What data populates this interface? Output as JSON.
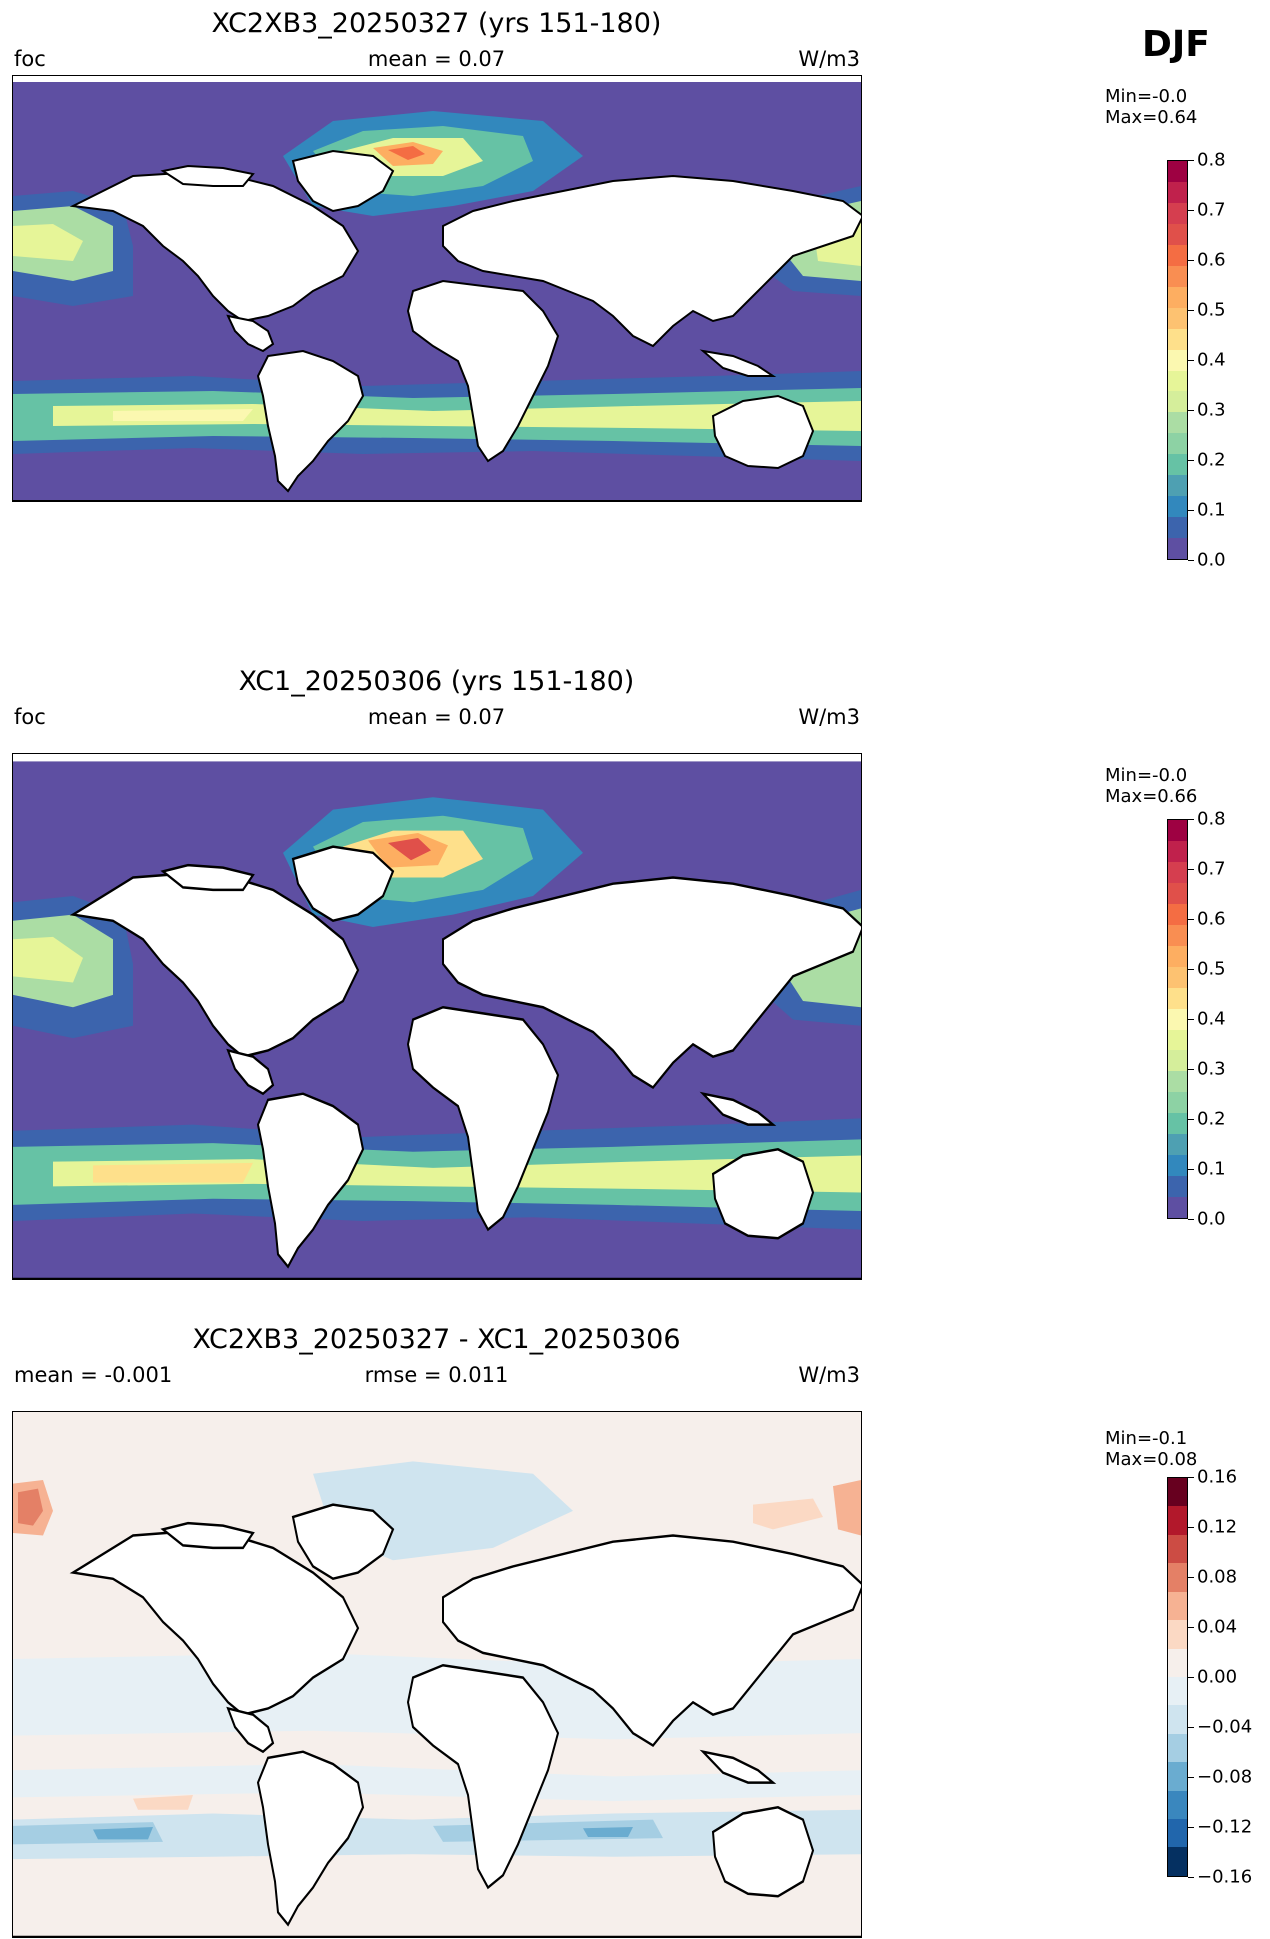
{
  "season_label": "DJF",
  "panels": [
    {
      "title": "XC2XB3_20250327 (yrs 151-180)",
      "left_label": "foc",
      "center_label": "mean = 0.07",
      "right_label": "W/m3",
      "min_label": "Min=-0.0",
      "max_label": "Max=0.64",
      "colorbar": {
        "ticks": [
          "0.0",
          "0.1",
          "0.2",
          "0.3",
          "0.4",
          "0.5",
          "0.6",
          "0.7",
          "0.8"
        ],
        "colors": [
          "#5e4fa2",
          "#3c64ad",
          "#3288bd",
          "#4ea0b2",
          "#66c2a5",
          "#8dd2a4",
          "#abdda4",
          "#d5ee9b",
          "#e6f598",
          "#fbf8b0",
          "#fee08b",
          "#fdc271",
          "#fdae61",
          "#f98e52",
          "#f46d43",
          "#e0504a",
          "#d53e4f",
          "#c0214c",
          "#9e0142"
        ]
      }
    },
    {
      "title": "XC1_20250306 (yrs 151-180)",
      "left_label": "foc",
      "center_label": "mean = 0.07",
      "right_label": "W/m3",
      "min_label": "Min=-0.0",
      "max_label": "Max=0.66",
      "colorbar": {
        "ticks": [
          "0.0",
          "0.1",
          "0.2",
          "0.3",
          "0.4",
          "0.5",
          "0.6",
          "0.7",
          "0.8"
        ],
        "colors": [
          "#5e4fa2",
          "#3c64ad",
          "#3288bd",
          "#4ea0b2",
          "#66c2a5",
          "#8dd2a4",
          "#abdda4",
          "#d5ee9b",
          "#e6f598",
          "#fbf8b0",
          "#fee08b",
          "#fdc271",
          "#fdae61",
          "#f98e52",
          "#f46d43",
          "#e0504a",
          "#d53e4f",
          "#c0214c",
          "#9e0142"
        ]
      }
    },
    {
      "title": "XC2XB3_20250327 - XC1_20250306",
      "left_label": "mean = -0.001",
      "center_label": "rmse = 0.011",
      "right_label": "W/m3",
      "min_label": "Min=-0.1",
      "max_label": "Max=0.08",
      "colorbar": {
        "ticks": [
          "−0.16",
          "−0.12",
          "−0.08",
          "−0.04",
          "0.00",
          "0.04",
          "0.08",
          "0.12",
          "0.16"
        ],
        "colors": [
          "#053061",
          "#2166ac",
          "#3a87be",
          "#6aacd0",
          "#a5cee3",
          "#cfe4ef",
          "#e7f0f5",
          "#f6efeb",
          "#fbd9c4",
          "#f6b293",
          "#e48066",
          "#cc4c44",
          "#b2182b",
          "#67001f"
        ]
      }
    }
  ]
}
